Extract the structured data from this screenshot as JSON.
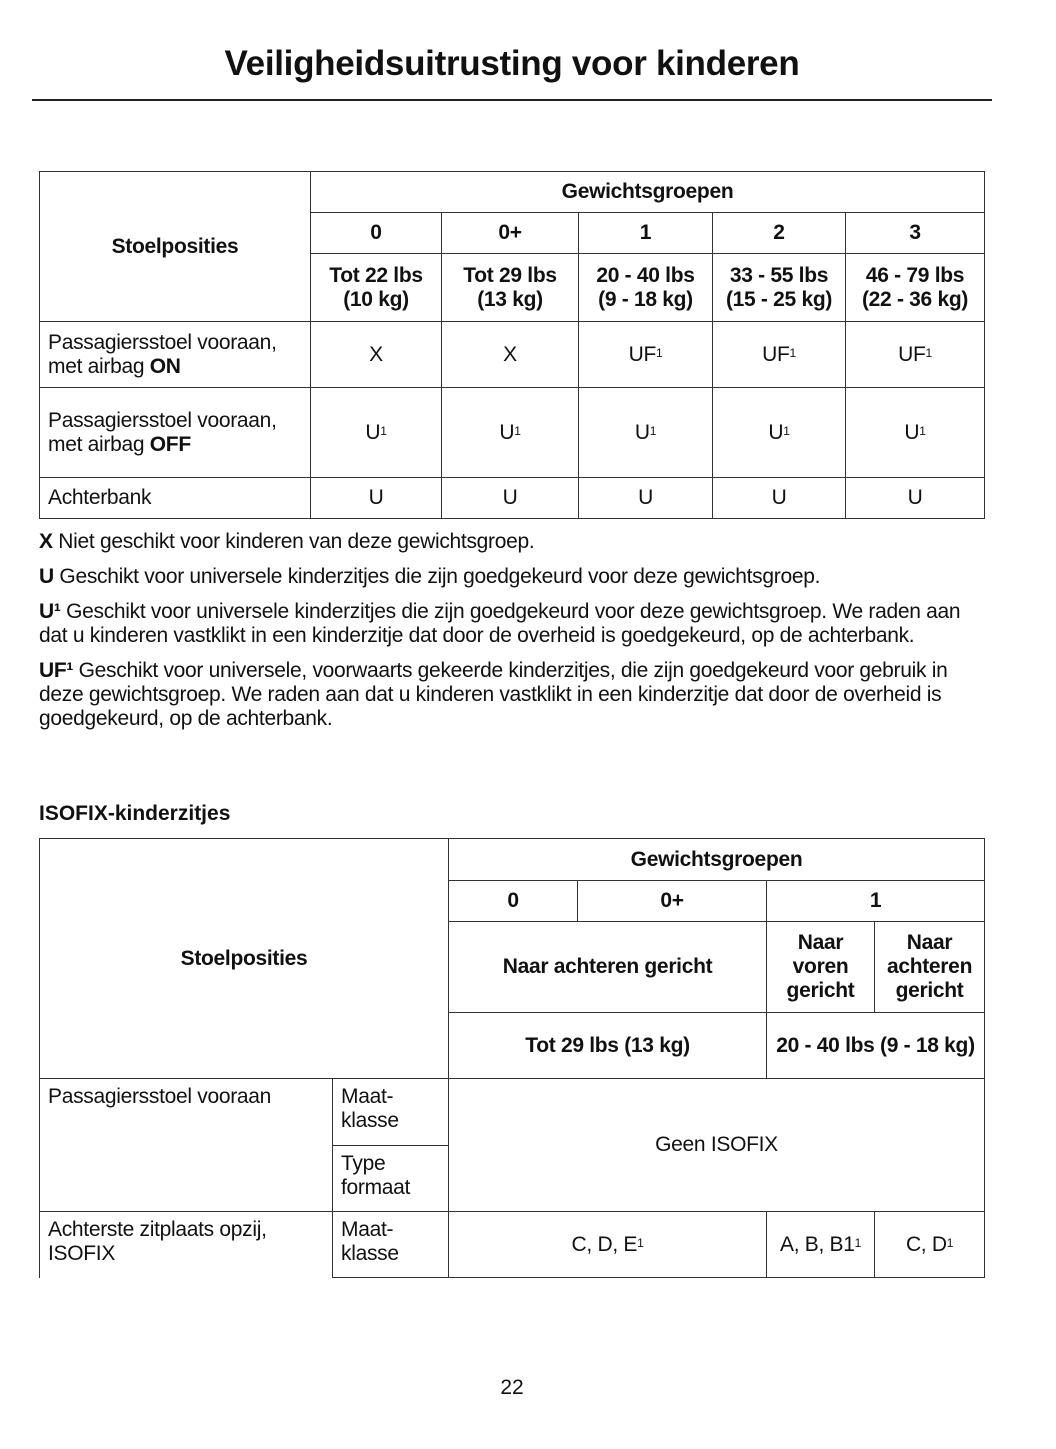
{
  "header": {
    "title": "Veiligheidsuitrusting voor kinderen"
  },
  "table1": {
    "seat_header": "Stoelposities",
    "group_header": "Gewichtsgroepen",
    "groups": [
      "0",
      "0+",
      "1",
      "2",
      "3"
    ],
    "weights": [
      [
        "Tot 22 lbs",
        "(10 kg)"
      ],
      [
        "Tot 29 lbs",
        "(13 kg)"
      ],
      [
        "20 - 40 lbs",
        "(9 - 18 kg)"
      ],
      [
        "33 - 55 lbs",
        "(15 - 25 kg)"
      ],
      [
        "46 - 79 lbs",
        "(22 - 36 kg)"
      ]
    ],
    "rows": [
      {
        "label": "Passagiersstoel vooraan, met airbag",
        "label_bold": "ON",
        "values": [
          "X",
          "X",
          "UF",
          "UF",
          "UF"
        ],
        "sup": [
          "",
          "",
          "1",
          "1",
          "1"
        ]
      },
      {
        "label": "Passagiersstoel vooraan, met airbag",
        "label_bold": "OFF",
        "values": [
          "U",
          "U",
          "U",
          "U",
          "U"
        ],
        "sup": [
          "1",
          "1",
          "1",
          "1",
          "1"
        ]
      },
      {
        "label": "Achterbank",
        "label_bold": "",
        "values": [
          "U",
          "U",
          "U",
          "U",
          "U"
        ],
        "sup": [
          "",
          "",
          "",
          "",
          ""
        ]
      }
    ]
  },
  "legend": [
    {
      "key": "X",
      "text": "Niet geschikt voor kinderen van deze gewichtsgroep."
    },
    {
      "key": "U",
      "text": "Geschikt voor universele kinderzitjes die zijn goedgekeurd voor deze gewichtsgroep."
    },
    {
      "key": "U¹",
      "text": "Geschikt voor universele kinderzitjes die zijn goedgekeurd voor deze gewichtsgroep. We raden aan dat u kinderen vastklikt in een kinderzitje dat door de overheid is goedgekeurd, op de achterbank."
    },
    {
      "key": "UF¹",
      "text": "Geschikt voor universele, voorwaarts gekeerde kinderzitjes, die zijn goedgekeurd voor gebruik in deze gewichtsgroep. We raden aan dat u kinderen vastklikt in een kinderzitje dat door de overheid is goedgekeurd, op de achterbank."
    }
  ],
  "isofix": {
    "heading": "ISOFIX-kinderzitjes",
    "seat_header": "Stoelposities",
    "group_header": "Gewichtsgroepen",
    "groups": [
      "0",
      "0+",
      "1"
    ],
    "rear_facing": "Naar achteren gericht",
    "forward_facing": "Naar voren gericht",
    "rear_facing_2": "Naar achteren gericht",
    "weight_0": "Tot 29 lbs (13 kg)",
    "weight_1": "20 - 40 lbs (9 - 18 kg)",
    "row1_label": "Passagiersstoel vooraan",
    "size_class": "Maat-klasse",
    "type_format": "Type formaat",
    "no_isofix": "Geen ISOFIX",
    "row2_label": "Achterste zitplaats opzij, ISOFIX",
    "row2_values": [
      "C, D, E",
      "A, B, B1",
      "C, D"
    ],
    "row2_sup": "1"
  },
  "footer": {
    "page_number": "22"
  }
}
